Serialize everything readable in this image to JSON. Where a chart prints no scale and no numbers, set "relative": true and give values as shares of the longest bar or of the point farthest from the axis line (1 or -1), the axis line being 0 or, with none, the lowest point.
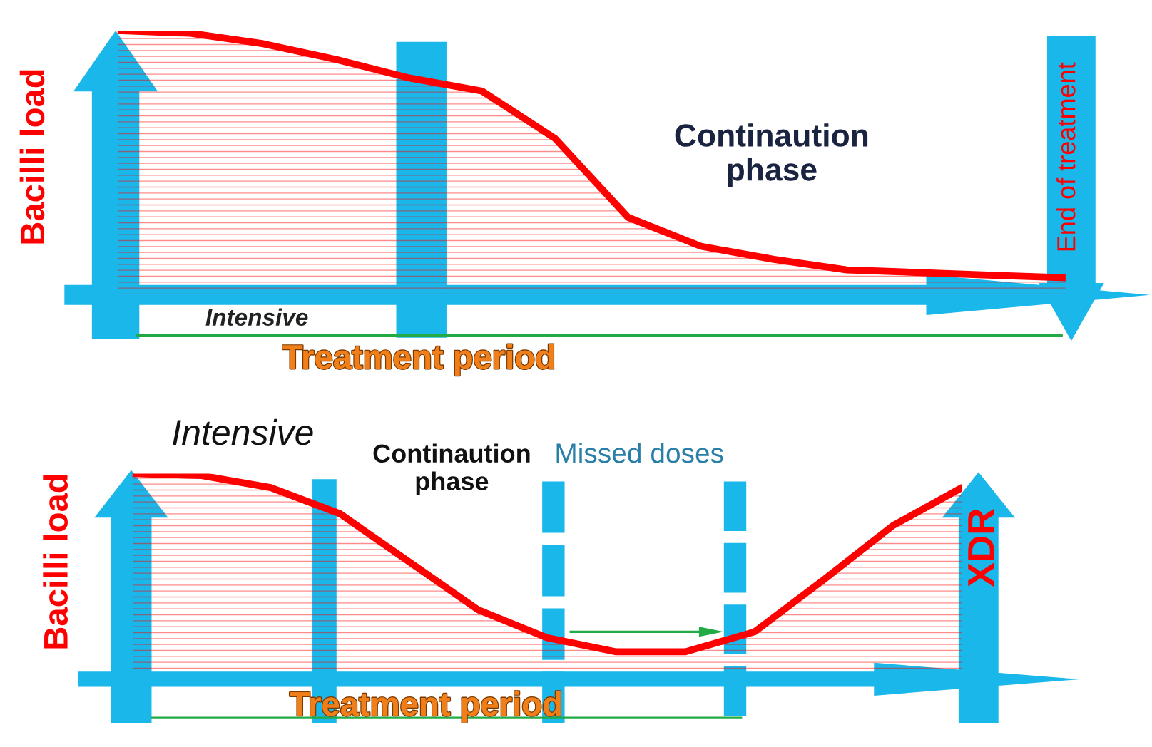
{
  "chart_data": [
    {
      "type": "area",
      "relative": true,
      "ylabel": "Bacilli load",
      "categories": [
        null,
        null,
        null,
        null,
        null,
        null,
        null,
        null,
        null,
        null,
        null,
        null,
        null,
        null
      ],
      "series": [
        {
          "color": "#ff0000",
          "values": [
            1.0,
            0.99,
            0.95,
            0.89,
            0.82,
            0.77,
            0.59,
            0.29,
            0.18,
            0.13,
            0.09,
            0.08,
            0.07,
            0.06
          ]
        }
      ],
      "annotations": [
        "Intensive",
        "Continaution\nphase",
        "Treatment period",
        "End of treatment"
      ]
    },
    {
      "type": "area",
      "relative": true,
      "ylabel": "Bacilli load",
      "categories": [
        null,
        null,
        null,
        null,
        null,
        null,
        null,
        null,
        null,
        null,
        null,
        null,
        null
      ],
      "series": [
        {
          "color": "#ff0000",
          "values": [
            1.0,
            0.99,
            0.93,
            0.8,
            0.56,
            0.32,
            0.18,
            0.11,
            0.11,
            0.21,
            0.47,
            0.74,
            0.93
          ]
        }
      ],
      "annotations": [
        "Intensive",
        "Continaution\nphase",
        "Missed doses",
        "XDR",
        "Treatment period"
      ]
    }
  ]
}
